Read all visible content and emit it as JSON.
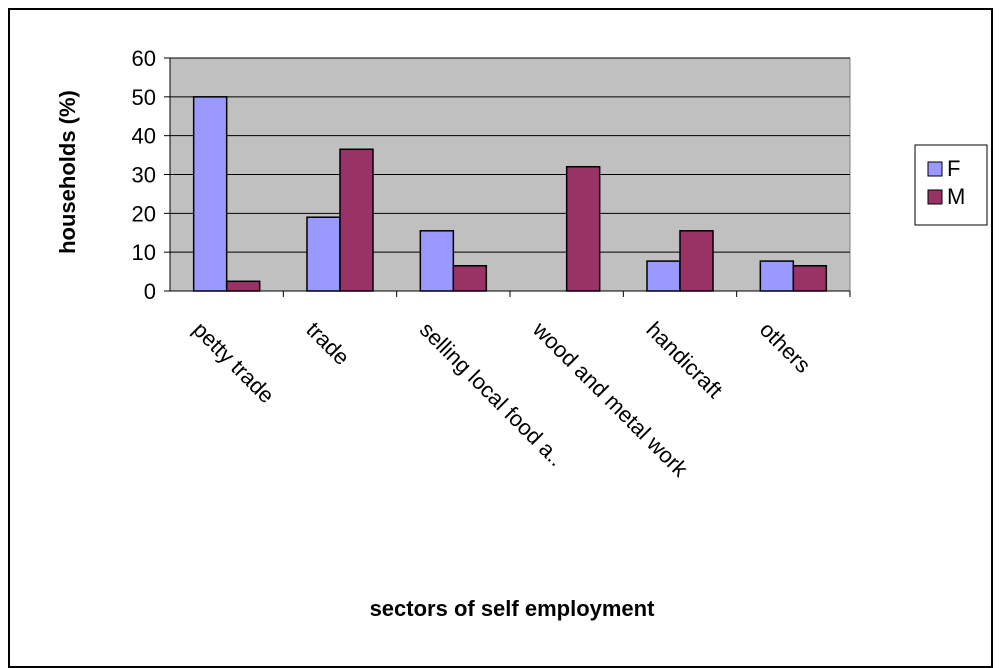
{
  "chart_data": {
    "type": "bar",
    "categories": [
      "petty trade",
      "trade",
      "selling local food a..",
      "wood and metal work",
      "handicraft",
      "others"
    ],
    "series": [
      {
        "name": "F",
        "color": "#9999ff",
        "values": [
          50,
          19,
          15.5,
          0,
          7.7,
          7.7
        ]
      },
      {
        "name": "M",
        "color": "#993366",
        "values": [
          2.5,
          36.5,
          6.5,
          32,
          15.5,
          6.5
        ]
      }
    ],
    "title": "",
    "xlabel": "sectors of self employment",
    "ylabel": "households (%)",
    "ylim": [
      0,
      60
    ],
    "yticks": [
      "0",
      "10",
      "20",
      "30",
      "40",
      "50",
      "60"
    ],
    "grid": true,
    "legend_position": "right",
    "plot_background": "#c0c0c0"
  }
}
